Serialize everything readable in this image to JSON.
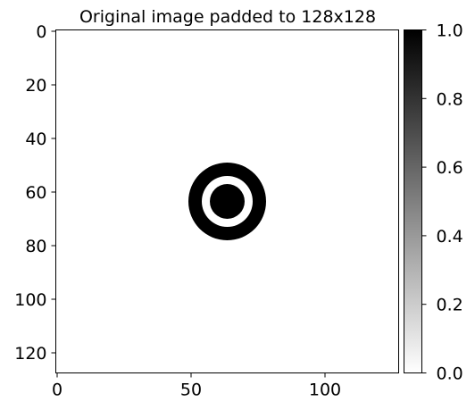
{
  "chart_data": {
    "type": "heatmap",
    "title": "Original image padded to 128x128",
    "image_size": [
      128,
      128
    ],
    "colormap": "gray_r",
    "value_range": [
      0,
      1
    ],
    "x_ticks": [
      0,
      50,
      100
    ],
    "y_ticks": [
      0,
      20,
      40,
      60,
      80,
      100,
      120
    ],
    "colorbar_ticks": [
      "0.0",
      "0.2",
      "0.4",
      "0.6",
      "0.8",
      "1.0"
    ],
    "shape": {
      "description": "two concentric black features on white: a filled disk inside a ring",
      "center_x": 63.5,
      "center_y": 63.5,
      "inner_disk_radius": 6.5,
      "ring_inner_radius": 9.5,
      "ring_outer_radius": 14.5,
      "ring_value": 1.0,
      "background_value": 0.0
    }
  }
}
